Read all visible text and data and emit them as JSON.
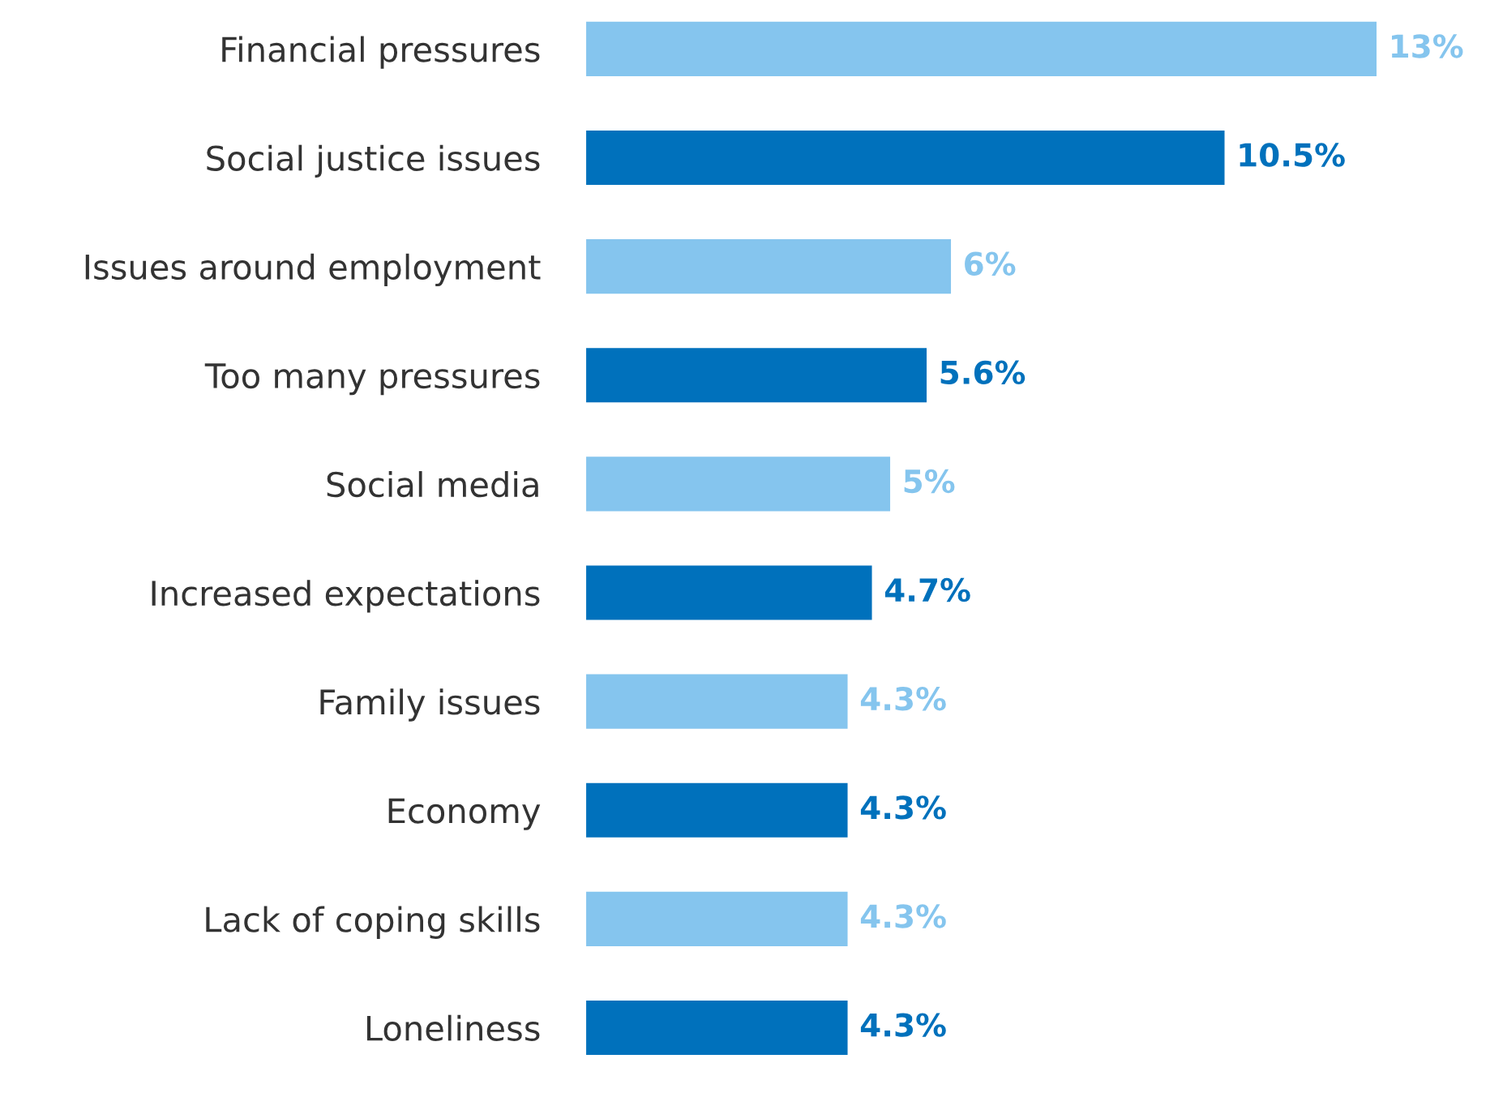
{
  "chart_data": {
    "type": "bar",
    "orientation": "horizontal",
    "categories": [
      "Financial pressures",
      "Social justice issues",
      "Issues around employment",
      "Too many pressures",
      "Social media",
      "Increased expectations",
      "Family issues",
      "Economy",
      "Lack of coping skills",
      "Loneliness"
    ],
    "values": [
      13,
      10.5,
      6,
      5.6,
      5,
      4.7,
      4.3,
      4.3,
      4.3,
      4.3
    ],
    "value_labels": [
      "13%",
      "10.5%",
      "6%",
      "5.6%",
      "5%",
      "4.7%",
      "4.3%",
      "4.3%",
      "4.3%",
      "4.3%"
    ],
    "colors": [
      "#85c5ee",
      "#0071bc",
      "#85c5ee",
      "#0071bc",
      "#85c5ee",
      "#0071bc",
      "#85c5ee",
      "#0071bc",
      "#85c5ee",
      "#0071bc"
    ],
    "grid": false,
    "legend": false
  }
}
